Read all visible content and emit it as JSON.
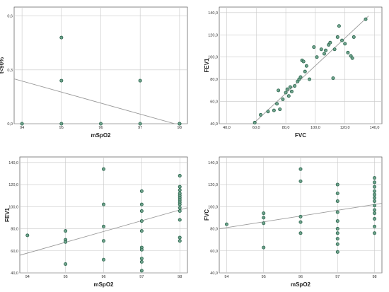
{
  "colors": {
    "marker_fill": "#6fa38c",
    "marker_edge": "#27624a",
    "fit_line": "#9a9a9a",
    "grid": "#c8c8c8",
    "frame": "#555555"
  },
  "chart_data": [
    {
      "type": "scatter",
      "xlabel": "mSpO2",
      "ylabel": "t<90%",
      "xlim": [
        93.8,
        98.2
      ],
      "ylim": [
        0,
        0.65
      ],
      "xticks": [
        94,
        95,
        96,
        97,
        98
      ],
      "yticks": [
        0,
        0.3,
        0.6
      ],
      "xtick_labels": [
        "94",
        "95",
        "96",
        "97",
        "98"
      ],
      "ytick_labels": [
        "0,0",
        "0,3",
        "0,6"
      ],
      "grid": true,
      "points": [
        [
          94,
          0
        ],
        [
          95,
          0.48
        ],
        [
          95,
          0.24
        ],
        [
          95,
          0
        ],
        [
          96,
          0
        ],
        [
          97,
          0.24
        ],
        [
          97,
          0
        ],
        [
          98,
          0
        ],
        [
          98,
          0
        ],
        [
          98,
          0
        ]
      ],
      "fit": [
        [
          93.8,
          0.25
        ],
        [
          98.2,
          -0.02
        ]
      ]
    },
    {
      "type": "scatter",
      "xlabel": "FVC",
      "ylabel": "FEV1",
      "xlim": [
        35,
        145
      ],
      "ylim": [
        40,
        145
      ],
      "xticks": [
        40,
        60,
        80,
        100,
        120,
        140
      ],
      "yticks": [
        40,
        60,
        80,
        100,
        120,
        140
      ],
      "xtick_labels": [
        "40,0",
        "60,0",
        "80,0",
        "100,0",
        "120,0",
        "140,0"
      ],
      "ytick_labels": [
        "40,0",
        "60,0",
        "80,0",
        "100,0",
        "120,0",
        "140,0"
      ],
      "grid": true,
      "points": [
        [
          59,
          41
        ],
        [
          63,
          48
        ],
        [
          68,
          51
        ],
        [
          72,
          52
        ],
        [
          74,
          58
        ],
        [
          76,
          53
        ],
        [
          75,
          70
        ],
        [
          78,
          62
        ],
        [
          80,
          68
        ],
        [
          81,
          71
        ],
        [
          82,
          65
        ],
        [
          83,
          73
        ],
        [
          84,
          69
        ],
        [
          86,
          74
        ],
        [
          88,
          78
        ],
        [
          89,
          80
        ],
        [
          90,
          82
        ],
        [
          91,
          97
        ],
        [
          93,
          87
        ],
        [
          94,
          92
        ],
        [
          92,
          96
        ],
        [
          96,
          80
        ],
        [
          99,
          109
        ],
        [
          101,
          100
        ],
        [
          104,
          107
        ],
        [
          106,
          103
        ],
        [
          107,
          106
        ],
        [
          109,
          111
        ],
        [
          110,
          113
        ],
        [
          112,
          81
        ],
        [
          113,
          107
        ],
        [
          115,
          118
        ],
        [
          116,
          128
        ],
        [
          118,
          115
        ],
        [
          120,
          112
        ],
        [
          122,
          104
        ],
        [
          124,
          101
        ],
        [
          125,
          99
        ],
        [
          126,
          118
        ],
        [
          134,
          134
        ]
      ],
      "fit": [
        [
          58,
          40
        ],
        [
          136,
          137
        ]
      ]
    },
    {
      "type": "scatter",
      "xlabel": "mSpO2",
      "ylabel": "FEV1",
      "xlim": [
        93.8,
        98.2
      ],
      "ylim": [
        40,
        145
      ],
      "xticks": [
        94,
        95,
        96,
        97,
        98
      ],
      "yticks": [
        40,
        60,
        80,
        100,
        120,
        140
      ],
      "xtick_labels": [
        "94",
        "95",
        "96",
        "97",
        "98"
      ],
      "ytick_labels": [
        "40,0",
        "60,0",
        "80,0",
        "100,0",
        "120,0",
        "140,0"
      ],
      "grid": true,
      "points": [
        [
          94,
          74
        ],
        [
          95,
          78
        ],
        [
          95,
          70
        ],
        [
          95,
          68
        ],
        [
          95,
          48
        ],
        [
          96,
          134
        ],
        [
          96,
          102
        ],
        [
          96,
          82
        ],
        [
          96,
          69
        ],
        [
          96,
          52
        ],
        [
          97,
          114
        ],
        [
          97,
          102
        ],
        [
          97,
          96
        ],
        [
          97,
          87
        ],
        [
          97,
          78
        ],
        [
          97,
          63
        ],
        [
          97,
          61
        ],
        [
          97,
          53
        ],
        [
          97,
          50
        ],
        [
          97,
          42
        ],
        [
          98,
          128
        ],
        [
          98,
          118
        ],
        [
          98,
          115
        ],
        [
          98,
          112
        ],
        [
          98,
          110
        ],
        [
          98,
          108
        ],
        [
          98,
          106
        ],
        [
          98,
          104
        ],
        [
          98,
          102
        ],
        [
          98,
          99
        ],
        [
          98,
          96
        ],
        [
          98,
          88
        ],
        [
          98,
          72
        ],
        [
          98,
          69
        ]
      ],
      "fit": [
        [
          93.8,
          56
        ],
        [
          98.2,
          99
        ]
      ]
    },
    {
      "type": "scatter",
      "xlabel": "mSpO2",
      "ylabel": "FVC",
      "xlim": [
        93.8,
        98.2
      ],
      "ylim": [
        40,
        145
      ],
      "xticks": [
        94,
        95,
        96,
        97,
        98
      ],
      "yticks": [
        40,
        60,
        80,
        100,
        120,
        140
      ],
      "xtick_labels": [
        "94",
        "95",
        "96",
        "97",
        "98"
      ],
      "ytick_labels": [
        "40,0",
        "60,0",
        "80,0",
        "100,0",
        "120,0",
        "140,0"
      ],
      "grid": true,
      "points": [
        [
          94,
          84
        ],
        [
          95,
          94
        ],
        [
          95,
          90
        ],
        [
          95,
          85
        ],
        [
          95,
          63
        ],
        [
          96,
          134
        ],
        [
          96,
          123
        ],
        [
          96,
          91
        ],
        [
          96,
          86
        ],
        [
          96,
          76
        ],
        [
          97,
          120
        ],
        [
          97,
          112
        ],
        [
          97,
          105
        ],
        [
          97,
          95
        ],
        [
          97,
          87
        ],
        [
          97,
          80
        ],
        [
          97,
          76
        ],
        [
          97,
          71
        ],
        [
          97,
          66
        ],
        [
          97,
          59
        ],
        [
          98,
          126
        ],
        [
          98,
          122
        ],
        [
          98,
          118
        ],
        [
          98,
          114
        ],
        [
          98,
          111
        ],
        [
          98,
          108
        ],
        [
          98,
          105
        ],
        [
          98,
          101
        ],
        [
          98,
          97
        ],
        [
          98,
          94
        ],
        [
          98,
          89
        ],
        [
          98,
          82
        ],
        [
          98,
          76
        ]
      ],
      "fit": [
        [
          93.8,
          80
        ],
        [
          98.2,
          103
        ]
      ]
    }
  ]
}
